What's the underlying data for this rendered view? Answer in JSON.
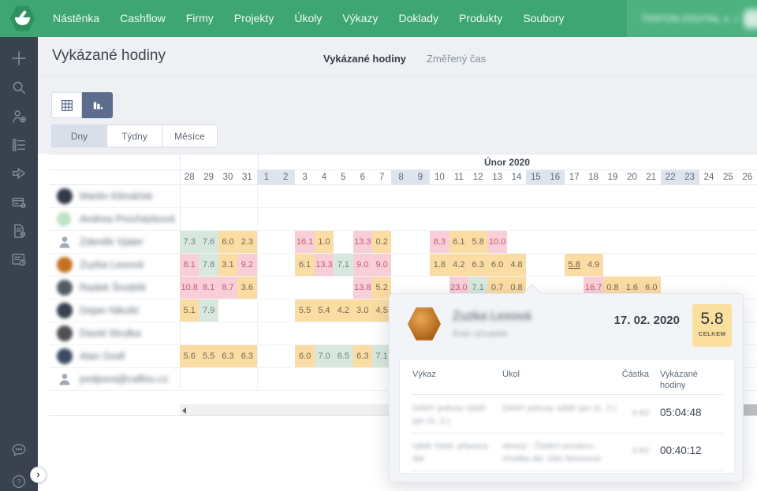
{
  "nav": {
    "items": [
      "Nástěnka",
      "Cashflow",
      "Firmy",
      "Projekty",
      "Úkoly",
      "Výkazy",
      "Doklady",
      "Produkty",
      "Soubory"
    ],
    "account_label_blurred": "TRIFON DIGITAL s. r. o.",
    "account_caret": "▼"
  },
  "sidebar": {
    "icons": [
      "add",
      "search",
      "add-contact",
      "task-list",
      "send-check",
      "billing-card",
      "invoice-alert",
      "timesheet-clock"
    ],
    "bottom_icons": [
      "chat",
      "help"
    ],
    "expand_glyph": "›"
  },
  "page": {
    "title": "Vykázané hodiny",
    "tabs": [
      {
        "label": "Vykázané hodiny",
        "active": true
      },
      {
        "label": "Změřený čas",
        "active": false
      }
    ]
  },
  "controls": {
    "view_modes": [
      "grid",
      "chart"
    ],
    "view_active": "chart",
    "period_options": [
      "Dny",
      "Týdny",
      "Měsíce"
    ],
    "period_active": "Dny"
  },
  "timesheet": {
    "month_label": "Únor 2020",
    "jan_days": [
      "28",
      "29",
      "30",
      "31"
    ],
    "feb_day_count": 26,
    "weekend_feb_days": [
      1,
      2,
      8,
      9,
      15,
      16,
      22,
      23
    ],
    "legend_colors": {
      "green_bg": "#D9E8DE",
      "orange_bg": "#FBDCA2",
      "pink_bg": "#F8CFD8",
      "weekend_bg": "#DEE4EE"
    },
    "rows": [
      {
        "name_blurred": "Martin Klimáček",
        "avatar": {
          "type": "photo",
          "color": "#323A48"
        },
        "cells": []
      },
      {
        "name_blurred": "Andrea Procházková",
        "avatar": {
          "type": "initials",
          "color": "#BCE3C6"
        },
        "cells": []
      },
      {
        "name_blurred": "Zdeněk Vjater",
        "avatar": {
          "type": "default"
        },
        "cells": [
          {
            "c": 0,
            "v": "7.3",
            "s": "green"
          },
          {
            "c": 1,
            "v": "7.6",
            "s": "green"
          },
          {
            "c": 2,
            "v": "6.0",
            "s": "orange"
          },
          {
            "c": 3,
            "v": "2.3",
            "s": "orange"
          },
          {
            "c": 6,
            "v": "16.1",
            "s": "pink"
          },
          {
            "c": 7,
            "v": "1.0",
            "s": "orange"
          },
          {
            "c": 9,
            "v": "13.3",
            "s": "pink"
          },
          {
            "c": 10,
            "v": "0.2",
            "s": "orange"
          },
          {
            "c": 13,
            "v": "8.3",
            "s": "pink"
          },
          {
            "c": 14,
            "v": "6.1",
            "s": "orange"
          },
          {
            "c": 15,
            "v": "5.8",
            "s": "orange"
          },
          {
            "c": 16,
            "v": "10.0",
            "s": "pink"
          }
        ]
      },
      {
        "name_blurred": "Zuzka Lexová",
        "avatar": {
          "type": "photo",
          "color": "#C4711F"
        },
        "cells": [
          {
            "c": 0,
            "v": "8.1",
            "s": "pink"
          },
          {
            "c": 1,
            "v": "7.8",
            "s": "green"
          },
          {
            "c": 2,
            "v": "3.1",
            "s": "orange"
          },
          {
            "c": 3,
            "v": "9.2",
            "s": "pink"
          },
          {
            "c": 6,
            "v": "6.1",
            "s": "orange"
          },
          {
            "c": 7,
            "v": "13.3",
            "s": "pink"
          },
          {
            "c": 8,
            "v": "7.1",
            "s": "green"
          },
          {
            "c": 9,
            "v": "9.0",
            "s": "pink"
          },
          {
            "c": 10,
            "v": "9.0",
            "s": "pink"
          },
          {
            "c": 13,
            "v": "1.8",
            "s": "orange"
          },
          {
            "c": 14,
            "v": "4.2",
            "s": "orange"
          },
          {
            "c": 15,
            "v": "6.3",
            "s": "orange"
          },
          {
            "c": 16,
            "v": "6.0",
            "s": "orange"
          },
          {
            "c": 17,
            "v": "4.8",
            "s": "orange"
          },
          {
            "c": 20,
            "v": "5.8",
            "s": "orange",
            "u": true
          },
          {
            "c": 21,
            "v": "4.9",
            "s": "orange"
          }
        ]
      },
      {
        "name_blurred": "Radek Šnoblík",
        "avatar": {
          "type": "photo",
          "color": "#555B66"
        },
        "cells": [
          {
            "c": 0,
            "v": "10.8",
            "s": "pink"
          },
          {
            "c": 1,
            "v": "8.1",
            "s": "pink"
          },
          {
            "c": 2,
            "v": "8.7",
            "s": "pink"
          },
          {
            "c": 3,
            "v": "3.6",
            "s": "orange"
          },
          {
            "c": 9,
            "v": "13.8",
            "s": "pink"
          },
          {
            "c": 10,
            "v": "5.2",
            "s": "orange"
          },
          {
            "c": 14,
            "v": "23.0",
            "s": "pink"
          },
          {
            "c": 15,
            "v": "7.1",
            "s": "green"
          },
          {
            "c": 16,
            "v": "0.7",
            "s": "orange"
          },
          {
            "c": 17,
            "v": "0.8",
            "s": "orange"
          },
          {
            "c": 21,
            "v": "16.7",
            "s": "pink"
          },
          {
            "c": 22,
            "v": "0.8",
            "s": "orange"
          },
          {
            "c": 23,
            "v": "1.6",
            "s": "orange"
          },
          {
            "c": 24,
            "v": "6.0",
            "s": "orange"
          }
        ]
      },
      {
        "name_blurred": "Dejan Nikolić",
        "avatar": {
          "type": "photo",
          "color": "#39404F"
        },
        "cells": [
          {
            "c": 0,
            "v": "5.1",
            "s": "orange"
          },
          {
            "c": 1,
            "v": "7.9",
            "s": "green"
          },
          {
            "c": 6,
            "v": "5.5",
            "s": "orange"
          },
          {
            "c": 7,
            "v": "5.4",
            "s": "orange"
          },
          {
            "c": 8,
            "v": "4.2",
            "s": "orange"
          },
          {
            "c": 9,
            "v": "3.0",
            "s": "orange"
          },
          {
            "c": 10,
            "v": "4.5",
            "s": "orange"
          }
        ]
      },
      {
        "name_blurred": "David Strulka",
        "avatar": {
          "type": "photo",
          "color": "#4E5054"
        },
        "cells": []
      },
      {
        "name_blurred": "Alan Godl",
        "avatar": {
          "type": "photo",
          "color": "#3E4C63"
        },
        "cells": [
          {
            "c": 0,
            "v": "5.6",
            "s": "orange"
          },
          {
            "c": 1,
            "v": "5.5",
            "s": "orange"
          },
          {
            "c": 2,
            "v": "6.3",
            "s": "orange"
          },
          {
            "c": 3,
            "v": "6.3",
            "s": "orange"
          },
          {
            "c": 6,
            "v": "6.0",
            "s": "orange"
          },
          {
            "c": 7,
            "v": "7.0",
            "s": "green"
          },
          {
            "c": 8,
            "v": "6.5",
            "s": "green"
          },
          {
            "c": 9,
            "v": "6.3",
            "s": "orange"
          },
          {
            "c": 10,
            "v": "7.1",
            "s": "green"
          }
        ]
      },
      {
        "name_blurred": "podpora@caflou.cz",
        "avatar": {
          "type": "default"
        },
        "cells": []
      }
    ]
  },
  "popup": {
    "name_blurred": "Zuzka Lexová",
    "subtitle_blurred": "Role uživatele",
    "date": "17. 02. 2020",
    "total_value": "5.8",
    "total_label": "CELKEM",
    "table_headers": {
      "vykaz": "Výkaz",
      "ukol": "Úkol",
      "castka": "Částka",
      "hodiny": "Vykázané hodiny"
    },
    "rows": [
      {
        "vykaz_blurred": "DANY pokusy výběr (po 11. 2.)",
        "ukol_blurred": "DANY pokusy výběr (po 11. 2.)",
        "castka_blurred": "0 Kč",
        "hodiny": "05:04:48"
      },
      {
        "vykaz_blurred": "výběr fotek, příprava dat",
        "ukol_blurred": "obrazy - Čistění prostoru, chodba akt. část Nemovná",
        "castka_blurred": "0 Kč",
        "hodiny": "00:40:12"
      }
    ]
  },
  "colors": {
    "nav_green": "#3EA673",
    "nav_green_light": "#4DB180",
    "sidebar_dark": "#3A4250",
    "accent_slate": "#5B6C8D",
    "page_bg": "#EEF0F4",
    "total_box_bg": "#FBDF9F"
  }
}
